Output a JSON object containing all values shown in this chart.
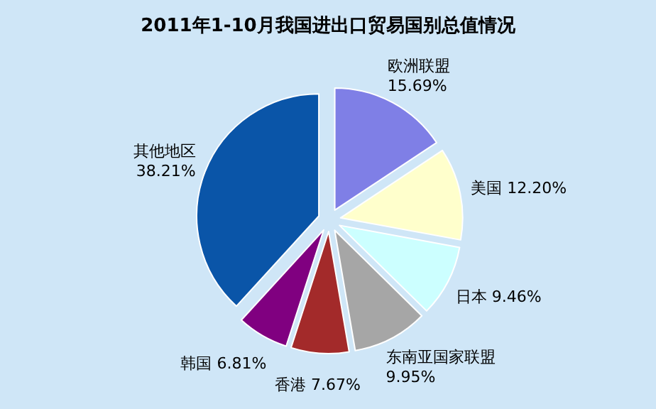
{
  "chart_data": {
    "type": "pie",
    "title": "2011年1-10月我国进出口贸易国别总值情况",
    "categories": [
      "欧洲联盟",
      "美国",
      "日本",
      "东南亚国家联盟",
      "香港",
      "韩国",
      "其他地区"
    ],
    "values": [
      15.69,
      12.2,
      9.46,
      9.95,
      7.67,
      6.81,
      38.21
    ],
    "value_labels": [
      "15.69%",
      "12.20%",
      "9.46%",
      "9.95%",
      "7.67%",
      "6.81%",
      "38.21%"
    ],
    "colors": [
      "#7f7fe6",
      "#ffffcc",
      "#ccffff",
      "#a6a6a6",
      "#a32a2a",
      "#800080",
      "#0a55a8"
    ],
    "legend": false
  }
}
